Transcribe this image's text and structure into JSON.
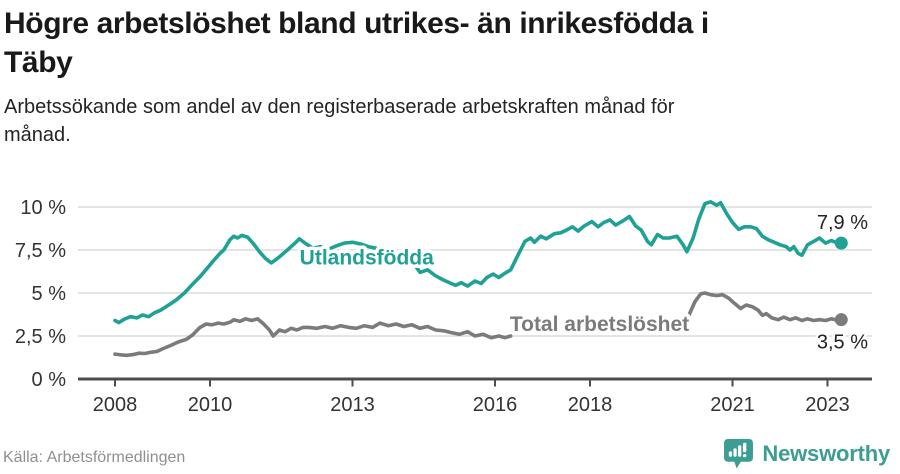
{
  "header": {
    "title": "Högre arbetslöshet bland utrikes- än inrikesfödda i\nTäby",
    "subtitle": "Arbetssökande som andel av den registerbaserade arbetskraften månad för\nmånad."
  },
  "footer": {
    "source": "Källa: Arbetsförmedlingen",
    "brand": "Newsworthy"
  },
  "colors": {
    "accent_teal": "#1FA195",
    "line_gray": "#7b7b7b",
    "gridline": "#dcdcdc",
    "axis": "#4d4d4d",
    "title_text": "#191919",
    "tick_text": "#333333",
    "source_text": "#8f8f8f",
    "brand_teal": "#3C9D93"
  },
  "chart_data": {
    "type": "line",
    "x_axis": {
      "tick_values": [
        2008,
        2010,
        2013,
        2016,
        2018,
        2021,
        2023
      ],
      "tick_labels": [
        "2008",
        "2010",
        "2013",
        "2016",
        "2018",
        "2021",
        "2023"
      ],
      "range": [
        2008,
        2023.4
      ]
    },
    "y_axis": {
      "tick_values": [
        0,
        2.5,
        5,
        7.5,
        10
      ],
      "tick_labels": [
        "0 %",
        "2,5 %",
        "5 %",
        "7,5 %",
        "10 %"
      ],
      "range": [
        0,
        10.5
      ],
      "unit": "%"
    },
    "grid": true,
    "series": [
      {
        "name": "Utlandsfödda",
        "color": "#1FA195",
        "end_label": "7,9 %",
        "end_value": 7.9,
        "label_pos": {
          "x": 2013.3,
          "y": 7.05
        },
        "segments": [
          [
            [
              2008.0,
              3.4
            ],
            [
              2008.08,
              3.28
            ],
            [
              2008.21,
              3.5
            ],
            [
              2008.33,
              3.62
            ],
            [
              2008.46,
              3.55
            ],
            [
              2008.58,
              3.72
            ],
            [
              2008.71,
              3.62
            ],
            [
              2008.83,
              3.85
            ],
            [
              2008.96,
              4.0
            ],
            [
              2009.13,
              4.3
            ],
            [
              2009.29,
              4.6
            ],
            [
              2009.46,
              5.0
            ],
            [
              2009.63,
              5.5
            ],
            [
              2009.79,
              5.95
            ],
            [
              2009.96,
              6.5
            ],
            [
              2010.08,
              6.9
            ],
            [
              2010.21,
              7.3
            ],
            [
              2010.29,
              7.5
            ],
            [
              2010.42,
              8.1
            ],
            [
              2010.5,
              8.3
            ],
            [
              2010.58,
              8.2
            ],
            [
              2010.67,
              8.35
            ],
            [
              2010.79,
              8.25
            ],
            [
              2010.92,
              7.85
            ],
            [
              2011.04,
              7.4
            ],
            [
              2011.17,
              7.0
            ],
            [
              2011.29,
              6.75
            ],
            [
              2011.46,
              7.1
            ],
            [
              2011.63,
              7.5
            ],
            [
              2011.79,
              7.9
            ],
            [
              2011.88,
              8.15
            ],
            [
              2012.0,
              7.9
            ],
            [
              2012.17,
              7.6
            ],
            [
              2012.33,
              7.7
            ],
            [
              2012.5,
              7.55
            ],
            [
              2012.67,
              7.75
            ],
            [
              2012.83,
              7.9
            ],
            [
              2013.0,
              7.95
            ],
            [
              2013.17,
              7.85
            ],
            [
              2013.33,
              7.7
            ],
            [
              2013.5,
              7.6
            ],
            [
              2013.67,
              7.45
            ],
            [
              2013.83,
              7.25
            ],
            [
              2014.0,
              7.05
            ],
            [
              2014.17,
              6.85
            ],
            [
              2014.33,
              6.55
            ],
            [
              2014.42,
              6.2
            ],
            [
              2014.58,
              6.35
            ],
            [
              2014.75,
              6.0
            ],
            [
              2014.92,
              5.75
            ],
            [
              2015.08,
              5.55
            ],
            [
              2015.17,
              5.45
            ],
            [
              2015.29,
              5.6
            ],
            [
              2015.42,
              5.4
            ],
            [
              2015.58,
              5.7
            ],
            [
              2015.71,
              5.55
            ],
            [
              2015.83,
              5.9
            ],
            [
              2015.96,
              6.1
            ],
            [
              2016.08,
              5.9
            ],
            [
              2016.21,
              6.15
            ],
            [
              2016.33,
              6.35
            ],
            [
              2016.5,
              7.3
            ],
            [
              2016.63,
              8.0
            ],
            [
              2016.75,
              8.2
            ],
            [
              2016.83,
              7.95
            ],
            [
              2016.96,
              8.3
            ],
            [
              2017.08,
              8.15
            ],
            [
              2017.25,
              8.45
            ],
            [
              2017.38,
              8.5
            ],
            [
              2017.5,
              8.65
            ],
            [
              2017.63,
              8.85
            ],
            [
              2017.75,
              8.6
            ],
            [
              2017.88,
              8.9
            ],
            [
              2018.04,
              9.15
            ],
            [
              2018.17,
              8.85
            ],
            [
              2018.29,
              9.1
            ],
            [
              2018.42,
              9.25
            ],
            [
              2018.54,
              8.95
            ],
            [
              2018.67,
              9.15
            ],
            [
              2018.83,
              9.45
            ],
            [
              2018.96,
              8.9
            ],
            [
              2019.08,
              8.65
            ],
            [
              2019.21,
              8.0
            ],
            [
              2019.29,
              7.8
            ],
            [
              2019.42,
              8.4
            ],
            [
              2019.54,
              8.2
            ],
            [
              2019.67,
              8.2
            ],
            [
              2019.83,
              8.3
            ],
            [
              2019.96,
              7.8
            ],
            [
              2020.04,
              7.4
            ],
            [
              2020.17,
              8.2
            ],
            [
              2020.29,
              9.3
            ],
            [
              2020.42,
              10.2
            ],
            [
              2020.54,
              10.3
            ],
            [
              2020.67,
              10.1
            ],
            [
              2020.75,
              10.25
            ],
            [
              2020.88,
              9.6
            ],
            [
              2021.0,
              9.1
            ],
            [
              2021.13,
              8.7
            ],
            [
              2021.25,
              8.85
            ],
            [
              2021.38,
              8.85
            ],
            [
              2021.5,
              8.75
            ],
            [
              2021.63,
              8.3
            ],
            [
              2021.75,
              8.1
            ],
            [
              2021.88,
              7.95
            ],
            [
              2022.0,
              7.8
            ],
            [
              2022.13,
              7.7
            ],
            [
              2022.21,
              7.5
            ],
            [
              2022.29,
              7.7
            ],
            [
              2022.38,
              7.3
            ],
            [
              2022.46,
              7.2
            ],
            [
              2022.58,
              7.8
            ],
            [
              2022.71,
              8.0
            ],
            [
              2022.83,
              8.2
            ],
            [
              2022.96,
              7.9
            ],
            [
              2023.08,
              8.05
            ],
            [
              2023.17,
              7.95
            ],
            [
              2023.29,
              7.9
            ]
          ]
        ]
      },
      {
        "name": "Total arbetslöshet",
        "color": "#7b7b7b",
        "end_label": "3,5 %",
        "end_value": 3.5,
        "label_pos": {
          "x": 2018.2,
          "y": 3.2
        },
        "segments": [
          [
            [
              2008.0,
              1.45
            ],
            [
              2008.13,
              1.4
            ],
            [
              2008.25,
              1.38
            ],
            [
              2008.38,
              1.42
            ],
            [
              2008.5,
              1.5
            ],
            [
              2008.63,
              1.48
            ],
            [
              2008.75,
              1.55
            ],
            [
              2008.88,
              1.6
            ],
            [
              2009.0,
              1.75
            ],
            [
              2009.17,
              1.95
            ],
            [
              2009.33,
              2.15
            ],
            [
              2009.5,
              2.3
            ],
            [
              2009.63,
              2.55
            ],
            [
              2009.79,
              3.0
            ],
            [
              2009.92,
              3.2
            ],
            [
              2010.04,
              3.15
            ],
            [
              2010.17,
              3.25
            ],
            [
              2010.29,
              3.2
            ],
            [
              2010.42,
              3.3
            ],
            [
              2010.5,
              3.45
            ],
            [
              2010.63,
              3.35
            ],
            [
              2010.75,
              3.5
            ],
            [
              2010.88,
              3.4
            ],
            [
              2011.0,
              3.5
            ],
            [
              2011.13,
              3.2
            ],
            [
              2011.25,
              2.85
            ],
            [
              2011.33,
              2.5
            ],
            [
              2011.46,
              2.85
            ],
            [
              2011.58,
              2.75
            ],
            [
              2011.71,
              2.95
            ],
            [
              2011.83,
              2.85
            ],
            [
              2011.96,
              3.0
            ],
            [
              2012.08,
              3.0
            ],
            [
              2012.25,
              2.95
            ],
            [
              2012.42,
              3.05
            ],
            [
              2012.58,
              2.95
            ],
            [
              2012.75,
              3.1
            ],
            [
              2012.92,
              3.0
            ],
            [
              2013.08,
              2.95
            ],
            [
              2013.25,
              3.1
            ],
            [
              2013.42,
              3.0
            ],
            [
              2013.58,
              3.25
            ],
            [
              2013.75,
              3.1
            ],
            [
              2013.92,
              3.2
            ],
            [
              2014.08,
              3.05
            ],
            [
              2014.25,
              3.15
            ],
            [
              2014.42,
              2.95
            ],
            [
              2014.58,
              3.05
            ],
            [
              2014.75,
              2.85
            ],
            [
              2014.92,
              2.8
            ],
            [
              2015.08,
              2.7
            ],
            [
              2015.25,
              2.6
            ],
            [
              2015.42,
              2.75
            ],
            [
              2015.58,
              2.5
            ],
            [
              2015.75,
              2.6
            ],
            [
              2015.92,
              2.4
            ],
            [
              2016.08,
              2.5
            ],
            [
              2016.21,
              2.4
            ],
            [
              2016.33,
              2.5
            ]
          ],
          [
            [
              2020.08,
              3.7
            ],
            [
              2020.21,
              4.5
            ],
            [
              2020.33,
              4.95
            ],
            [
              2020.42,
              5.0
            ],
            [
              2020.54,
              4.9
            ],
            [
              2020.67,
              4.85
            ],
            [
              2020.79,
              4.9
            ],
            [
              2020.92,
              4.7
            ],
            [
              2021.04,
              4.4
            ],
            [
              2021.17,
              4.1
            ],
            [
              2021.29,
              4.3
            ],
            [
              2021.42,
              4.2
            ],
            [
              2021.54,
              4.0
            ],
            [
              2021.63,
              3.7
            ],
            [
              2021.71,
              3.8
            ],
            [
              2021.83,
              3.55
            ],
            [
              2021.96,
              3.45
            ],
            [
              2022.08,
              3.6
            ],
            [
              2022.21,
              3.45
            ],
            [
              2022.33,
              3.55
            ],
            [
              2022.46,
              3.4
            ],
            [
              2022.58,
              3.5
            ],
            [
              2022.71,
              3.4
            ],
            [
              2022.83,
              3.45
            ],
            [
              2022.96,
              3.4
            ],
            [
              2023.08,
              3.5
            ],
            [
              2023.17,
              3.45
            ],
            [
              2023.29,
              3.45
            ]
          ]
        ]
      }
    ]
  }
}
